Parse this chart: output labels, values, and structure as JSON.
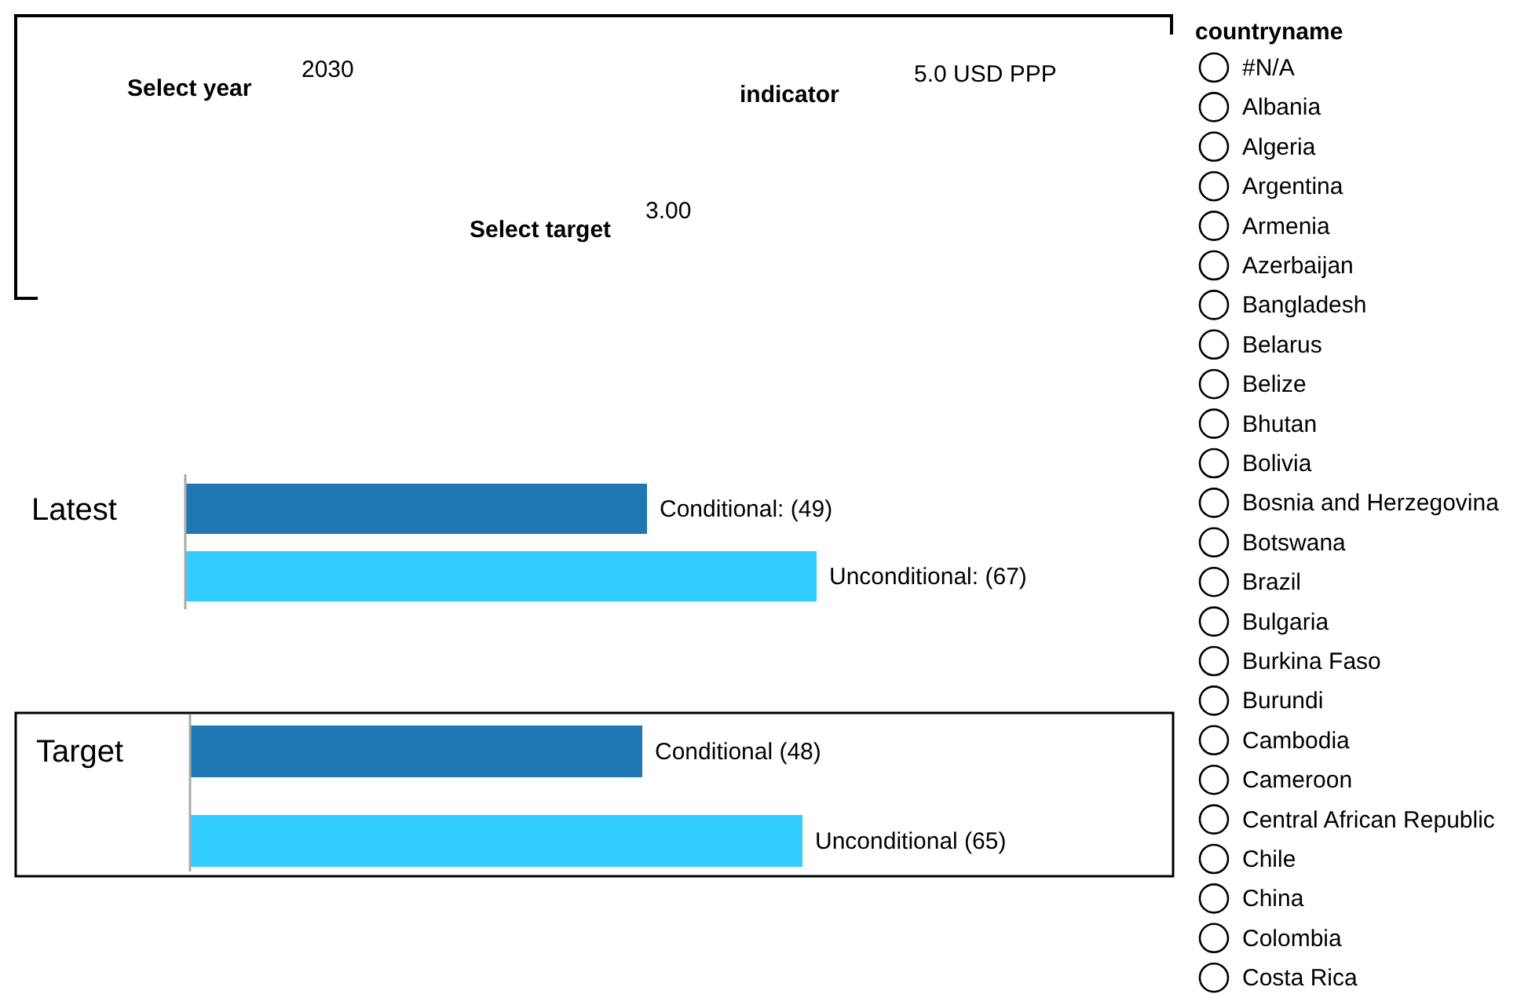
{
  "chart_data": [
    {
      "type": "other",
      "annotations": [
        "Select year",
        "2030",
        "indicator",
        "5.0 USD PPP",
        "Select target",
        "3.00"
      ]
    },
    {
      "type": "bar",
      "orientation": "horizontal",
      "title": "Latest",
      "categories": [
        null,
        null
      ],
      "values": [
        49,
        67
      ],
      "colors": [
        "#1f77b4",
        "#33ccff"
      ],
      "value_labels": [
        "Conditional: (49)",
        "Unconditional: (67)"
      ]
    },
    {
      "type": "bar",
      "orientation": "horizontal",
      "title": "Target",
      "categories": [
        null,
        null
      ],
      "values": [
        48,
        65
      ],
      "colors": [
        "#1f77b4",
        "#33ccff"
      ],
      "value_labels": [
        "Conditional (48)",
        "Unconditional (65)"
      ]
    },
    {
      "type": "other",
      "title": "countryname",
      "annotations": [
        "#N/A",
        "Albania",
        "Algeria",
        "Argentina",
        "Armenia",
        "Azerbaijan",
        "Bangladesh",
        "Belarus",
        "Belize",
        "Bhutan",
        "Bolivia",
        "Bosnia and Herzegovina",
        "Botswana",
        "Brazil",
        "Bulgaria",
        "Burkina Faso",
        "Burundi",
        "Cambodia",
        "Cameroon",
        "Central African Republic",
        "Chile",
        "China",
        "Colombia",
        "Costa Rica"
      ]
    }
  ]
}
